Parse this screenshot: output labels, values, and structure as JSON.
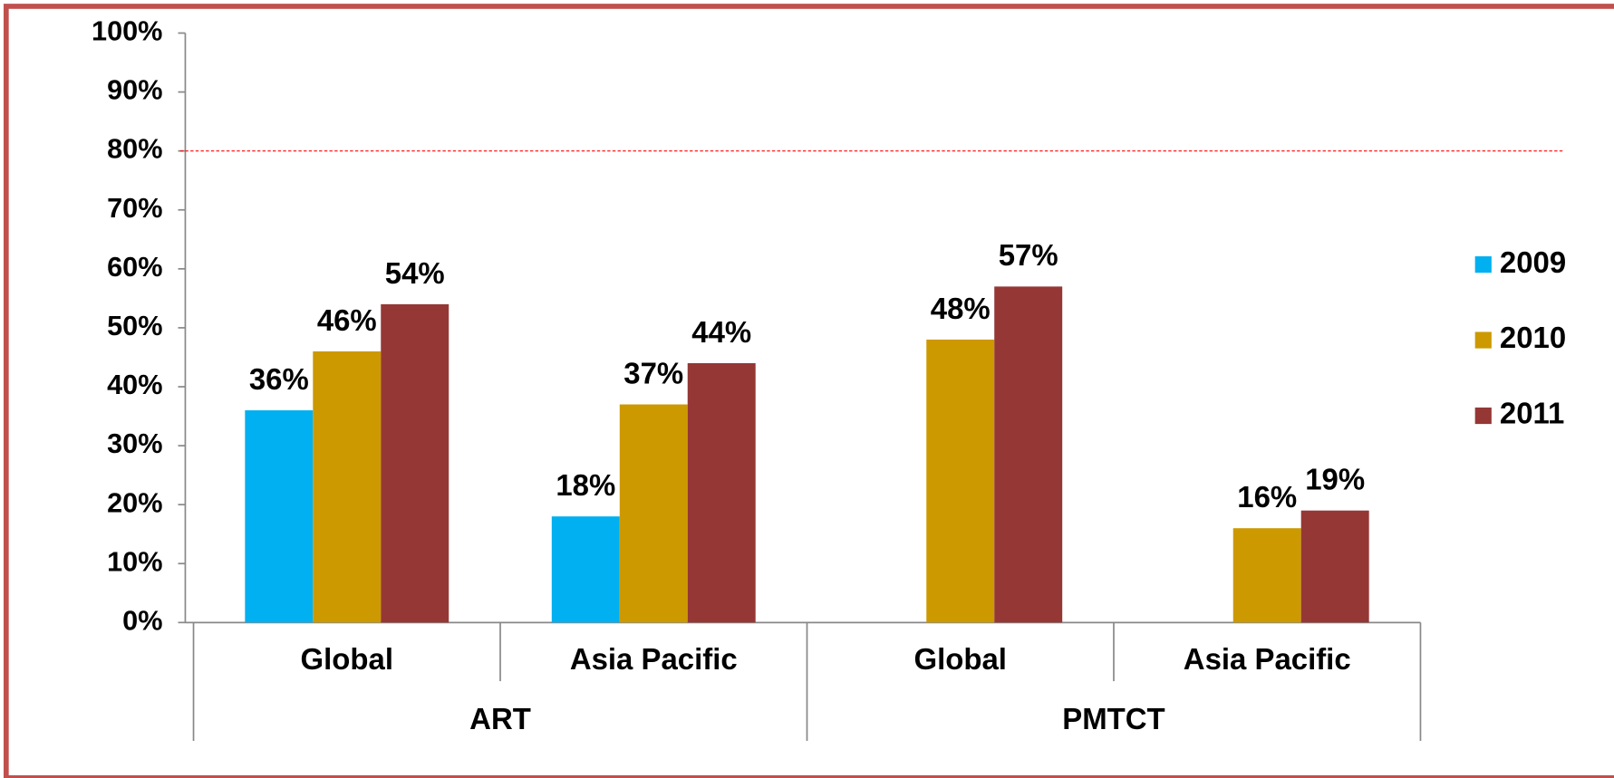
{
  "chart_data": {
    "type": "bar",
    "groups": [
      "ART",
      "PMTCT"
    ],
    "categories": [
      "Global",
      "Asia Pacific",
      "Global",
      "Asia Pacific"
    ],
    "series": [
      {
        "name": "2009",
        "color": "#00b0f0",
        "values": [
          36,
          18,
          null,
          null
        ],
        "value_labels": [
          "36%",
          "18%",
          null,
          null
        ]
      },
      {
        "name": "2010",
        "color": "#cc9900",
        "values": [
          46,
          37,
          48,
          16
        ],
        "value_labels": [
          "46%",
          "37%",
          "48%",
          "16%"
        ]
      },
      {
        "name": "2011",
        "color": "#953735",
        "values": [
          54,
          44,
          57,
          19
        ],
        "value_labels": [
          "54%",
          "44%",
          "57%",
          "19%"
        ]
      }
    ],
    "ylim": [
      0,
      100
    ],
    "yticks": [
      {
        "value": 0,
        "label": "0%"
      },
      {
        "value": 10,
        "label": "10%"
      },
      {
        "value": 20,
        "label": "20%"
      },
      {
        "value": 30,
        "label": "30%"
      },
      {
        "value": 40,
        "label": "40%"
      },
      {
        "value": 50,
        "label": "50%"
      },
      {
        "value": 60,
        "label": "60%"
      },
      {
        "value": 70,
        "label": "70%"
      },
      {
        "value": 80,
        "label": "80%"
      },
      {
        "value": 90,
        "label": "90%"
      },
      {
        "value": 100,
        "label": "100%"
      }
    ],
    "target_line": {
      "value": 80,
      "color": "#ff0000"
    },
    "legend": "right"
  }
}
